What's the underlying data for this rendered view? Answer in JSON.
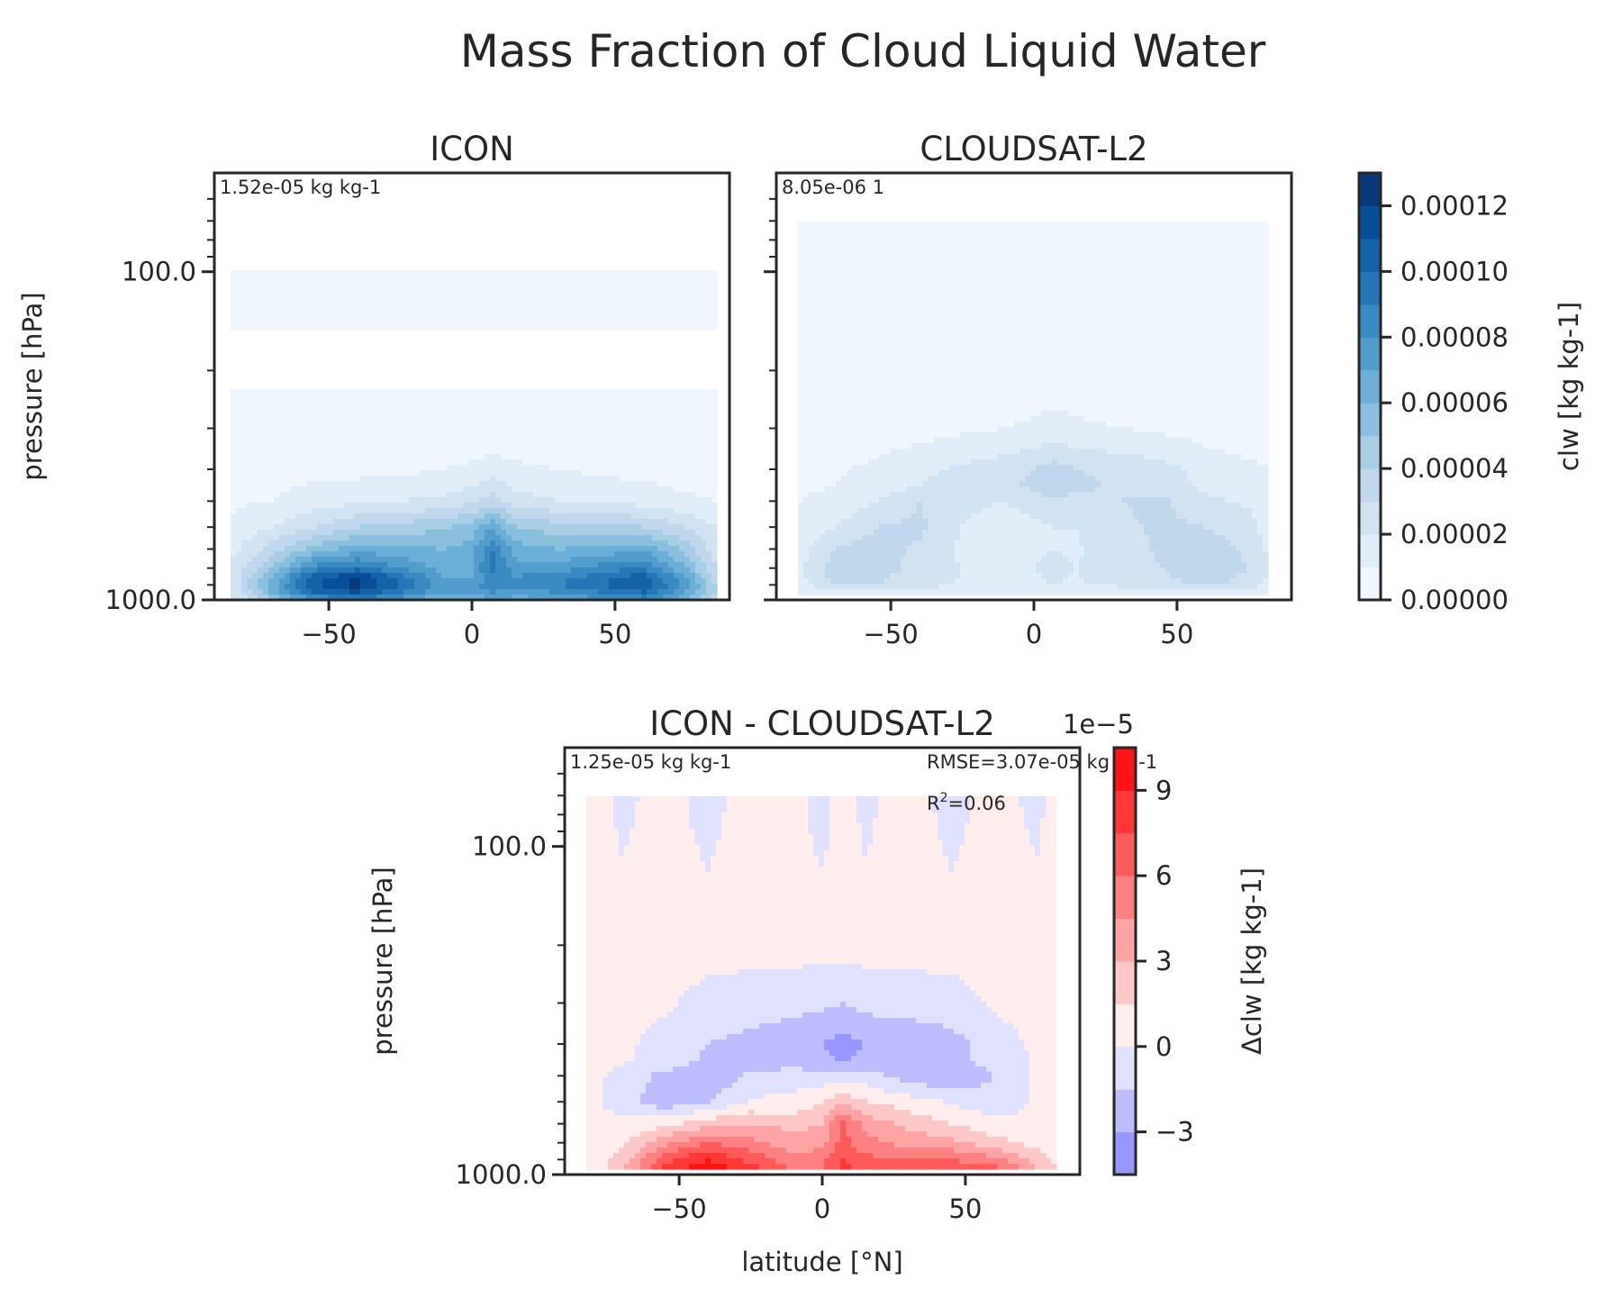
{
  "figure": {
    "title": "Mass Fraction of Cloud Liquid Water"
  },
  "chart_data": [
    {
      "type": "heatmap",
      "title": "ICON",
      "xlabel": "",
      "ylabel": "pressure [hPa]",
      "x_range": [
        -90,
        90
      ],
      "y_range_hPa": [
        50,
        1000
      ],
      "y_scale": "log",
      "yticks": [
        {
          "value": 100,
          "label": "100.0"
        },
        {
          "value": 1000,
          "label": "1000.0"
        }
      ],
      "xticks": [
        {
          "value": -50,
          "label": "−50"
        },
        {
          "value": 0,
          "label": "0"
        },
        {
          "value": 50,
          "label": "50"
        }
      ],
      "annotation": "1.52e-05 kg kg-1",
      "colormap": "Blues",
      "field": {
        "lats": [
          -85,
          -70,
          -55,
          -40,
          -25,
          -10,
          0,
          7,
          15,
          30,
          45,
          60,
          75,
          85
        ],
        "plevs": [
          100,
          200,
          300,
          400,
          500,
          600,
          700,
          800,
          850,
          900,
          950,
          1000
        ],
        "values_1e5": [
          [
            0.2,
            0.2,
            0.2,
            0.2,
            0.2,
            0.2,
            0.2,
            0.2,
            0.2,
            0.2,
            0.2,
            0.2,
            0.2,
            0.2
          ],
          [
            0.1,
            0.1,
            0.1,
            0.1,
            0.1,
            0.1,
            0.1,
            0.1,
            0.1,
            0.1,
            0.1,
            0.1,
            0.1,
            0.1
          ],
          [
            0.3,
            0.3,
            0.3,
            0.3,
            0.3,
            0.3,
            0.3,
            0.3,
            0.3,
            0.3,
            0.3,
            0.3,
            0.3,
            0.3
          ],
          [
            0.5,
            0.6,
            0.7,
            0.7,
            0.8,
            1,
            1.2,
            1.5,
            1.2,
            1,
            0.8,
            0.7,
            0.5,
            0.4
          ],
          [
            0.8,
            1,
            1.5,
            1.8,
            2,
            2.2,
            2.8,
            3.5,
            2.5,
            2,
            1.8,
            1.6,
            1.2,
            1
          ],
          [
            1.2,
            2,
            3,
            4,
            4.5,
            4.8,
            5.5,
            7,
            5,
            4.5,
            4.2,
            4,
            3,
            2
          ],
          [
            1.5,
            3.5,
            5.5,
            6.5,
            6.2,
            6,
            6.5,
            9,
            6.5,
            6,
            6.3,
            6.8,
            4.5,
            2.5
          ],
          [
            2,
            5,
            8.5,
            9.5,
            8,
            6.5,
            6.8,
            9.5,
            7.5,
            7.5,
            8.5,
            9,
            6,
            3
          ],
          [
            2,
            6,
            10.5,
            12,
            9.5,
            7,
            7,
            8.5,
            8,
            8.5,
            9.5,
            10.5,
            7,
            3.5
          ],
          [
            2,
            6.5,
            11,
            12.5,
            10,
            7.5,
            7.5,
            9,
            8.5,
            9,
            10,
            11,
            7.5,
            4
          ],
          [
            1.8,
            6,
            10,
            11,
            9,
            7,
            7,
            8,
            7.5,
            8,
            9,
            10,
            7,
            4
          ],
          [
            1.5,
            5,
            8,
            9,
            7.5,
            6,
            6,
            7,
            6.5,
            7,
            8,
            8.5,
            6,
            3.5
          ]
        ]
      }
    },
    {
      "type": "heatmap",
      "title": "CLOUDSAT-L2",
      "xlabel": "",
      "ylabel": "",
      "x_range": [
        -90,
        90
      ],
      "y_range_hPa": [
        50,
        1000
      ],
      "y_scale": "log",
      "xticks": [
        {
          "value": -50,
          "label": "−50"
        },
        {
          "value": 0,
          "label": "0"
        },
        {
          "value": 50,
          "label": "50"
        }
      ],
      "annotation": "8.05e-06 1",
      "colormap": "Blues",
      "field": {
        "lats": [
          -82,
          -70,
          -55,
          -40,
          -25,
          -10,
          0,
          7,
          15,
          30,
          45,
          60,
          75,
          82
        ],
        "plevs": [
          70,
          200,
          300,
          400,
          450,
          500,
          600,
          700,
          800,
          900,
          950,
          980
        ],
        "values_1e5": [
          [
            0.3,
            0.3,
            0.3,
            0.3,
            0.3,
            0.3,
            0.3,
            0.3,
            0.3,
            0.3,
            0.3,
            0.3,
            0.3,
            0.3
          ],
          [
            0.3,
            0.3,
            0.3,
            0.3,
            0.3,
            0.3,
            0.3,
            0.3,
            0.3,
            0.3,
            0.3,
            0.3,
            0.3,
            0.3
          ],
          [
            0.4,
            0.4,
            0.5,
            0.6,
            0.8,
            1,
            1.2,
            1.4,
            1.2,
            1,
            0.8,
            0.6,
            0.5,
            0.4
          ],
          [
            0.8,
            0.9,
            1.2,
            1.8,
            2.2,
            2.6,
            3,
            3.5,
            3,
            2.8,
            2.4,
            1.6,
            1.2,
            1
          ],
          [
            0.9,
            1,
            1.4,
            2,
            2.4,
            2.8,
            3.2,
            4,
            3.2,
            2.9,
            2.5,
            1.8,
            1.4,
            1.1
          ],
          [
            1,
            1.2,
            2,
            3,
            2.2,
            2,
            2.4,
            2.8,
            2.5,
            3,
            3.2,
            2.2,
            1.8,
            1.2
          ],
          [
            1.2,
            2,
            3,
            3.2,
            2,
            1.5,
            1.8,
            2,
            2,
            2.8,
            3.2,
            3,
            2.5,
            1.5
          ],
          [
            1.5,
            3,
            3.5,
            2.8,
            1.8,
            1.5,
            1.8,
            2,
            1.9,
            2.5,
            3.2,
            3.5,
            2.8,
            1.8
          ],
          [
            1.8,
            3.5,
            3.5,
            2.6,
            2,
            1.8,
            2,
            2.2,
            2,
            2.5,
            3,
            3.8,
            3,
            2
          ],
          [
            1.6,
            3,
            3,
            2.4,
            1.9,
            1.7,
            1.9,
            2,
            1.9,
            2.2,
            2.6,
            3.2,
            2.6,
            1.8
          ],
          [
            1,
            1.5,
            1.8,
            1.5,
            1.2,
            1,
            1.1,
            1.2,
            1.1,
            1.3,
            1.5,
            1.8,
            1.5,
            1.1
          ],
          [
            0.3,
            0.5,
            0.6,
            0.5,
            0.4,
            0.4,
            0.4,
            0.4,
            0.4,
            0.4,
            0.5,
            0.6,
            0.5,
            0.4
          ]
        ]
      }
    },
    {
      "type": "heatmap",
      "title": "ICON - CLOUDSAT-L2",
      "xlabel": "latitude [°N]",
      "ylabel": "pressure [hPa]",
      "x_range": [
        -90,
        90
      ],
      "y_range_hPa": [
        50,
        1000
      ],
      "y_scale": "log",
      "yticks": [
        {
          "value": 100,
          "label": "100.0"
        },
        {
          "value": 1000,
          "label": "1000.0"
        }
      ],
      "xticks": [
        {
          "value": -50,
          "label": "−50"
        },
        {
          "value": 0,
          "label": "0"
        },
        {
          "value": 50,
          "label": "50"
        }
      ],
      "annotation": "1.25e-05 kg kg-1",
      "stats": {
        "rmse": "RMSE=3.07e-05 kg kg-1",
        "r2_prefix": "R",
        "r2_sup": "2",
        "r2_suffix": "=0.06"
      },
      "colormap": "bwr",
      "field": {
        "lats": [
          -82,
          -70,
          -55,
          -40,
          -25,
          -10,
          0,
          7,
          15,
          30,
          45,
          60,
          75,
          82
        ],
        "plevs": [
          70,
          200,
          300,
          400,
          450,
          500,
          600,
          700,
          800,
          900,
          950,
          980
        ],
        "values_1e5": [
          [
            0.5,
            -0.2,
            0.3,
            -0.3,
            0.4,
            0.2,
            -0.3,
            0.3,
            -0.2,
            0.4,
            -0.3,
            0.3,
            -0.2,
            0.3
          ],
          [
            0.5,
            0.5,
            0.5,
            0.5,
            0.5,
            0.5,
            0.5,
            0.5,
            0.5,
            0.5,
            0.5,
            0.5,
            0.5,
            0.5
          ],
          [
            0.5,
            0.5,
            0.2,
            -0.5,
            -0.8,
            -1,
            -1.2,
            -1.5,
            -1,
            -0.8,
            -0.6,
            0.2,
            0.5,
            0.5
          ],
          [
            0.5,
            0.3,
            -0.5,
            -1.5,
            -2,
            -2.5,
            -3,
            -3.8,
            -3,
            -2.8,
            -2.2,
            -0.6,
            0.2,
            0.5
          ],
          [
            0.5,
            0.2,
            -0.6,
            -1.8,
            -2.2,
            -2.2,
            -2.6,
            -3.2,
            -2.4,
            -2.5,
            -2.2,
            -0.8,
            0.2,
            0.5
          ],
          [
            0.5,
            -0.5,
            -2,
            -2.8,
            -1.2,
            -0.8,
            -0.8,
            -0.6,
            -0.8,
            -2.2,
            -3,
            -1.5,
            0.2,
            0.5
          ],
          [
            0.5,
            -0.8,
            -2.5,
            -1.5,
            0.2,
            0.5,
            1.5,
            2.5,
            1.5,
            0.8,
            -0.2,
            -1,
            0.2,
            0.5
          ],
          [
            0.5,
            0.5,
            1,
            2.5,
            3,
            2.5,
            3,
            6.5,
            4,
            2.5,
            1.5,
            0.5,
            0.3,
            0.5
          ],
          [
            0.6,
            1.2,
            4,
            6,
            5,
            3.5,
            4,
            6.5,
            5,
            4,
            3.5,
            2,
            1,
            0.6
          ],
          [
            0.5,
            2,
            7,
            9,
            7,
            5,
            5.5,
            7.5,
            6.5,
            6,
            6,
            5,
            2.5,
            1
          ],
          [
            0.5,
            2.5,
            8,
            10,
            8,
            5.5,
            6,
            8,
            7,
            6.5,
            7,
            6.5,
            3,
            1.5
          ],
          [
            0.4,
            2,
            7,
            8.5,
            7,
            5,
            5.5,
            7,
            6,
            6,
            6.5,
            6,
            2.5,
            3
          ]
        ]
      }
    }
  ],
  "colorbars": [
    {
      "label": "clw [kg kg-1]",
      "range": [
        0,
        0.00013
      ],
      "ticks": [
        {
          "value": 0,
          "label": "0.00000"
        },
        {
          "value": 2e-05,
          "label": "0.00002"
        },
        {
          "value": 4e-05,
          "label": "0.00004"
        },
        {
          "value": 6e-05,
          "label": "0.00006"
        },
        {
          "value": 8e-05,
          "label": "0.00008"
        },
        {
          "value": 0.0001,
          "label": "0.00010"
        },
        {
          "value": 0.00012,
          "label": "0.00012"
        }
      ]
    },
    {
      "label": "Δclw [kg kg-1]",
      "offset_label": "1e−5",
      "range": [
        -4.5,
        10.5
      ],
      "ticks": [
        {
          "value": -3,
          "label": "−3"
        },
        {
          "value": 0,
          "label": "0"
        },
        {
          "value": 3,
          "label": "3"
        },
        {
          "value": 6,
          "label": "6"
        },
        {
          "value": 9,
          "label": "9"
        }
      ]
    }
  ]
}
